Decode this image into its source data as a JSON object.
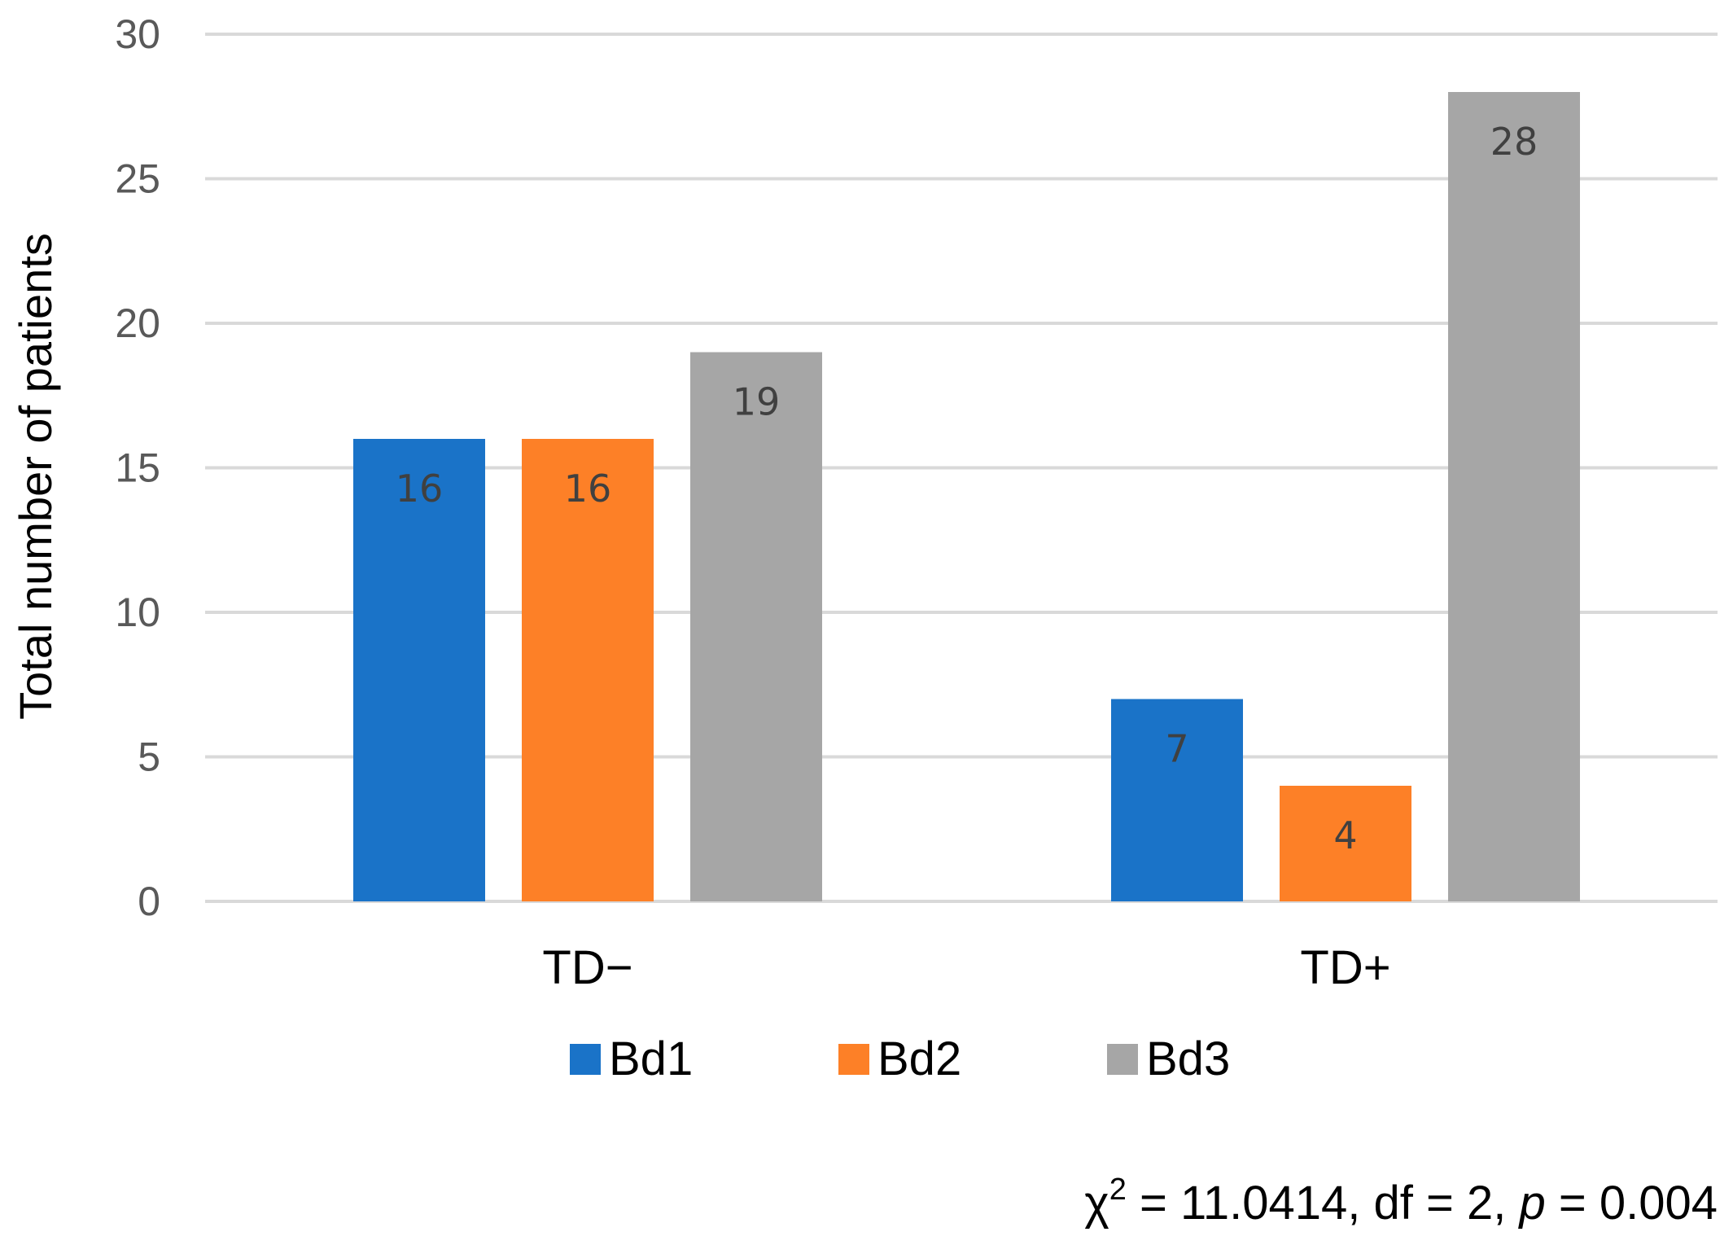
{
  "chart_data": {
    "type": "bar",
    "categories": [
      "TD−",
      "TD+"
    ],
    "series": [
      {
        "name": "Bd1",
        "values": [
          16,
          7
        ],
        "color": "#1a73c8"
      },
      {
        "name": "Bd2",
        "values": [
          16,
          4
        ],
        "color": "#fd8027"
      },
      {
        "name": "Bd3",
        "values": [
          19,
          28
        ],
        "color": "#a6a6a6"
      }
    ],
    "ylabel": "Total number of patients",
    "ylim": [
      0,
      30
    ],
    "yticks": [
      0,
      5,
      10,
      15,
      20,
      25,
      30
    ],
    "grid": true,
    "legend": "bottom",
    "annotation": {
      "chi_symbol": "χ",
      "chi_exponent": "2",
      "chi_value": " = 11.0414, df = 2, ",
      "p_symbol": "p",
      "p_value": " = 0.004"
    }
  }
}
